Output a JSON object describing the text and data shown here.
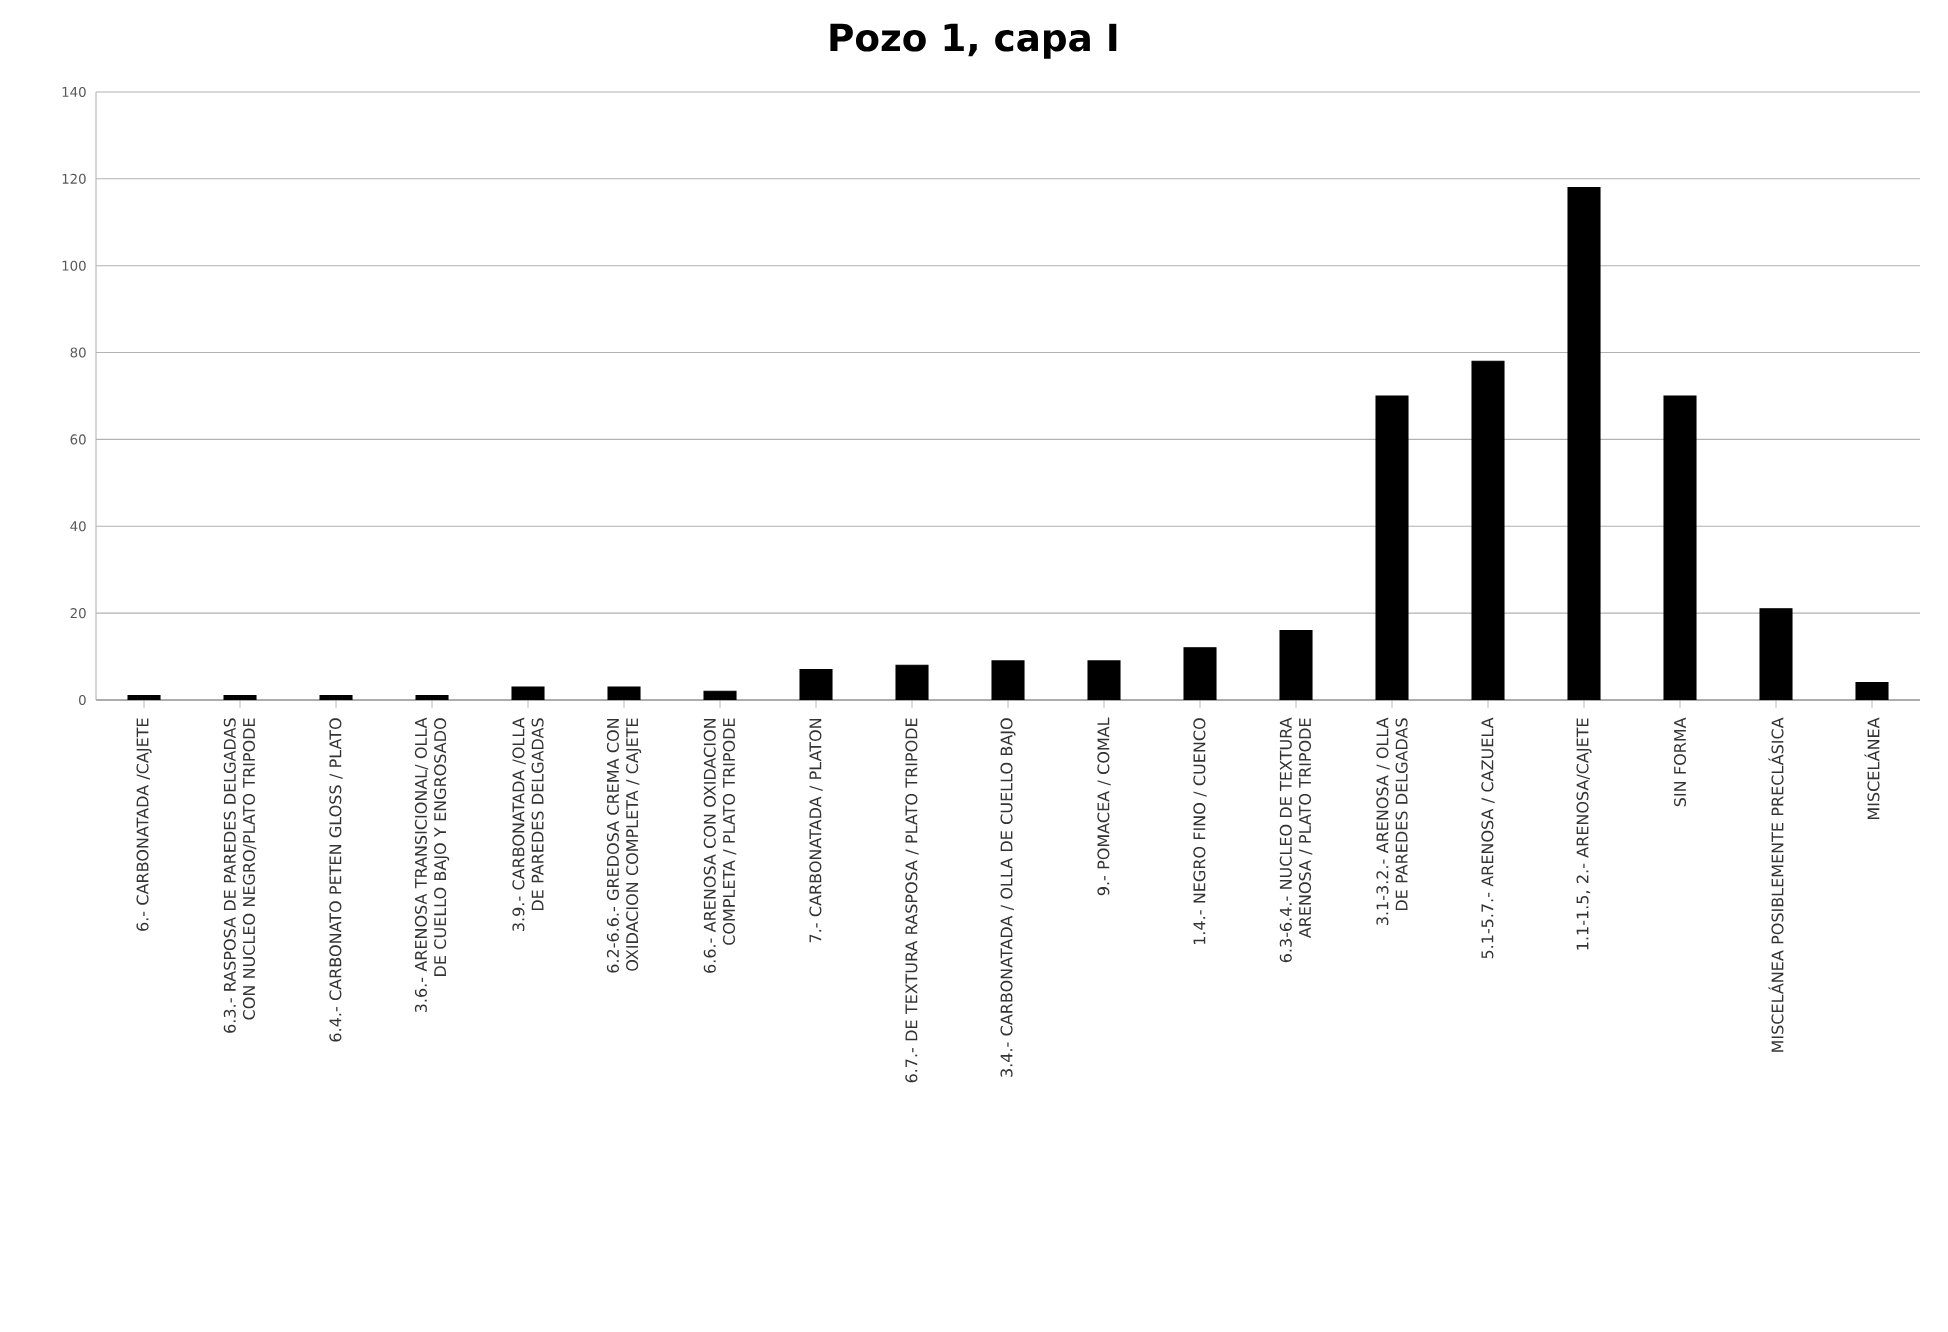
{
  "chart_data": {
    "type": "bar",
    "title": "Pozo 1, capa I",
    "categories": [
      "6.- CARBONATADA /CAJETE",
      "6.3.- RASPOSA DE PAREDES DELGADAS CON NUCLEO NEGRO/PLATO TRIPODE",
      "6.4.- CARBONATO PETEN GLOSS / PLATO",
      "3.6.- ARENOSA TRANSICIONAL/ OLLA DE CUELLO BAJO Y ENGROSADO",
      "3.9.- CARBONATADA /OLLA DE PAREDES DELGADAS",
      "6.2-6.6.- GREDOSA CREMA CON OXIDACION COMPLETA / CAJETE",
      "6.6.- ARENOSA CON OXIDACION COMPLETA / PLATO TRIPODE",
      "7.- CARBONATADA / PLATON",
      "6.7.- DE TEXTURA RASPOSA / PLATO TRIPODE",
      "3.4.- CARBONATADA / OLLA DE CUELLO BAJO",
      "9.- POMACEA / COMAL",
      "1.4.- NEGRO FINO / CUENCO",
      "6.3-6.4.- NUCLEO DE TEXTURA ARENOSA / PLATO TRIPODE",
      "3.1-3.2.- ARENOSA / OLLA DE PAREDES DELGADAS",
      "5.1-5.7.- ARENOSA / CAZUELA",
      "1.1-1.5, 2.- ARENOSA/CAJETE",
      "SIN FORMA",
      "MISCELÁNEA POSIBLEMENTE PRECLÁSICA",
      "MISCELÁNEA"
    ],
    "values": [
      1,
      1,
      1,
      1,
      3,
      3,
      2,
      7,
      8,
      9,
      9,
      12,
      16,
      70,
      78,
      118,
      70,
      21,
      4
    ],
    "color": "#000000",
    "ylim": [
      0,
      140
    ],
    "yticks": [
      0,
      20,
      40,
      60,
      80,
      100,
      120,
      140
    ],
    "grid": "y"
  }
}
